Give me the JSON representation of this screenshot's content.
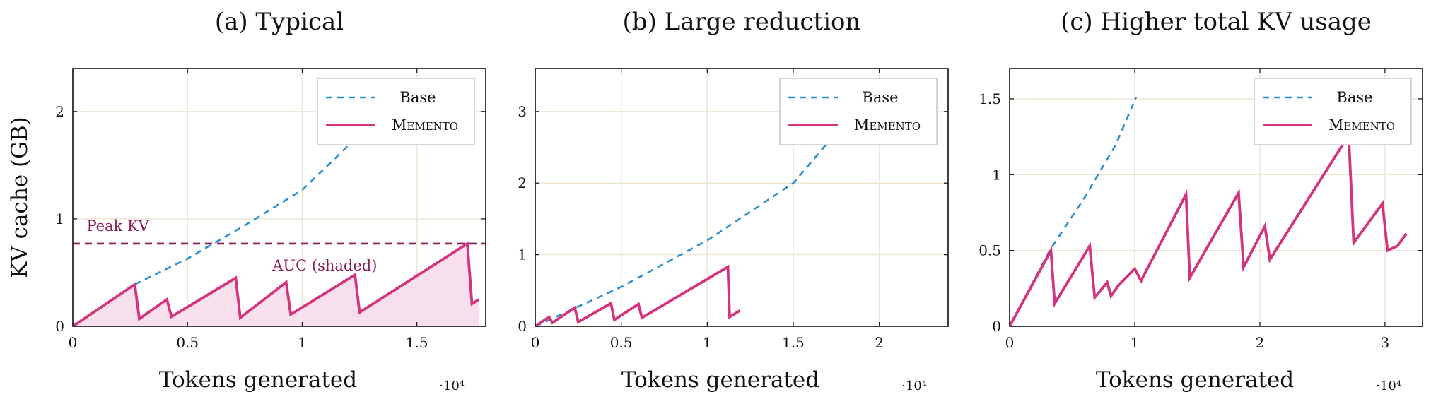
{
  "colors": {
    "base": "#2b8ed1",
    "memento": "#d4337e",
    "fill": "#f7e0ec",
    "peak": "#8b1e55",
    "grid": "#ece6d3",
    "frame": "#111111"
  },
  "chart_data": [
    {
      "type": "line",
      "title": "(a) Typical",
      "xlabel": "Tokens generated",
      "ylabel": "KV cache (GB)",
      "x_multiplier": "·10⁴",
      "xlim": [
        0,
        1.8
      ],
      "ylim": [
        0,
        2.4
      ],
      "x_ticks": [
        0,
        0.5,
        1,
        1.5
      ],
      "x_tick_labels": [
        "0",
        "0.5",
        "1",
        "1.5"
      ],
      "y_ticks": [
        0,
        1,
        2
      ],
      "y_tick_labels": [
        "0",
        "1",
        "2"
      ],
      "grid": true,
      "legend_position": "top-right",
      "legend": [
        "Base",
        "Memento"
      ],
      "peak_line": {
        "label": "Peak KV",
        "y": 0.77
      },
      "area_label": "AUC (shaded)",
      "shade_memento": true,
      "series": [
        {
          "name": "Base",
          "style": "dashed",
          "x": [
            0.27,
            0.5,
            0.75,
            1.0,
            1.2
          ],
          "y": [
            0.39,
            0.63,
            0.94,
            1.27,
            1.68
          ]
        },
        {
          "name": "Memento",
          "style": "solid",
          "x": [
            0,
            0.27,
            0.29,
            0.41,
            0.43,
            0.71,
            0.73,
            0.93,
            0.95,
            1.23,
            1.25,
            1.72,
            1.74,
            1.77
          ],
          "y": [
            0,
            0.39,
            0.07,
            0.25,
            0.09,
            0.45,
            0.08,
            0.41,
            0.11,
            0.48,
            0.13,
            0.77,
            0.21,
            0.25
          ]
        }
      ]
    },
    {
      "type": "line",
      "title": "(b) Large reduction",
      "xlabel": "Tokens generated",
      "ylabel": "",
      "x_multiplier": "·10⁴",
      "xlim": [
        0,
        2.4
      ],
      "ylim": [
        0,
        3.6
      ],
      "x_ticks": [
        0,
        0.5,
        1,
        1.5,
        2
      ],
      "x_tick_labels": [
        "0",
        "0.5",
        "1",
        "1.5",
        "2"
      ],
      "y_ticks": [
        0,
        1,
        2,
        3
      ],
      "y_tick_labels": [
        "0",
        "1",
        "2",
        "3"
      ],
      "grid": true,
      "legend_position": "top-right",
      "legend": [
        "Base",
        "Memento"
      ],
      "series": [
        {
          "name": "Base",
          "style": "dashed",
          "x": [
            0,
            0.5,
            1.0,
            1.5,
            1.72
          ],
          "y": [
            0,
            0.55,
            1.2,
            2.0,
            2.62
          ]
        },
        {
          "name": "Memento",
          "style": "solid",
          "x": [
            0,
            0.08,
            0.1,
            0.23,
            0.25,
            0.44,
            0.46,
            0.6,
            0.62,
            1.12,
            1.13,
            1.19
          ],
          "y": [
            0,
            0.13,
            0.05,
            0.26,
            0.06,
            0.32,
            0.09,
            0.31,
            0.12,
            0.83,
            0.13,
            0.22
          ]
        }
      ]
    },
    {
      "type": "line",
      "title": "(c) Higher total KV usage",
      "xlabel": "Tokens generated",
      "ylabel": "",
      "x_multiplier": "·10⁴",
      "xlim": [
        0,
        3.3
      ],
      "ylim": [
        0,
        1.7
      ],
      "x_ticks": [
        0,
        1,
        2,
        3
      ],
      "x_tick_labels": [
        "0",
        "1",
        "2",
        "3"
      ],
      "y_ticks": [
        0,
        0.5,
        1,
        1.5
      ],
      "y_tick_labels": [
        "0",
        "0.5",
        "1",
        "1.5"
      ],
      "grid": true,
      "legend_position": "top-right",
      "legend": [
        "Base",
        "Memento"
      ],
      "series": [
        {
          "name": "Base",
          "style": "dashed",
          "x": [
            0,
            0.32,
            0.6,
            0.85,
            1.01
          ],
          "y": [
            0,
            0.5,
            0.85,
            1.2,
            1.51
          ]
        },
        {
          "name": "Memento",
          "style": "solid",
          "x": [
            0,
            0.33,
            0.36,
            0.64,
            0.68,
            0.78,
            0.81,
            0.87,
            1.0,
            1.05,
            1.41,
            1.44,
            1.83,
            1.87,
            2.04,
            2.08,
            2.71,
            2.75,
            2.98,
            3.02,
            3.1,
            3.17
          ],
          "y": [
            0,
            0.5,
            0.15,
            0.53,
            0.19,
            0.29,
            0.2,
            0.27,
            0.38,
            0.3,
            0.87,
            0.32,
            0.88,
            0.39,
            0.66,
            0.44,
            1.26,
            0.55,
            0.81,
            0.5,
            0.53,
            0.61
          ]
        }
      ]
    }
  ]
}
